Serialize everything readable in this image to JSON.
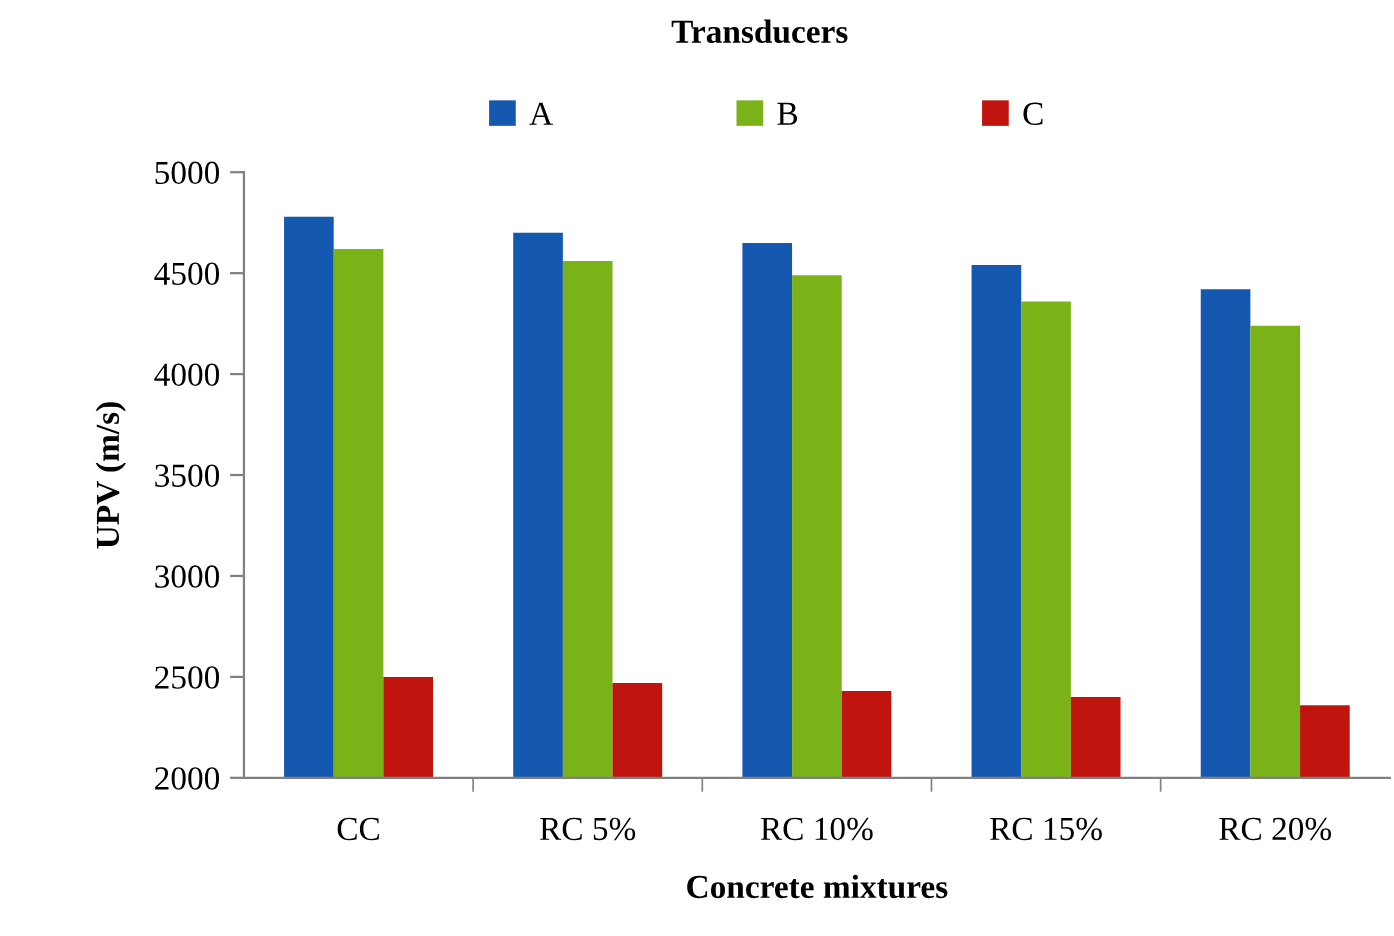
{
  "chart_data": {
    "type": "bar",
    "title": "Transducers",
    "xlabel": "Concrete mixtures",
    "ylabel": "UPV (m/s)",
    "categories": [
      "CC",
      "RC 5%",
      "RC 10%",
      "RC 15%",
      "RC 20%"
    ],
    "series": [
      {
        "name": "A",
        "color": "#1558b0",
        "values": [
          4780,
          4700,
          4650,
          4540,
          4420
        ]
      },
      {
        "name": "B",
        "color": "#7ab317",
        "values": [
          4620,
          4560,
          4490,
          4360,
          4240
        ]
      },
      {
        "name": "C",
        "color": "#c0140f",
        "values": [
          2500,
          2470,
          2430,
          2400,
          2360
        ]
      }
    ],
    "ylim": [
      2000,
      5000
    ],
    "yticks": [
      2000,
      2500,
      3000,
      3500,
      4000,
      4500,
      5000
    ],
    "grid": false,
    "legend": "top"
  }
}
